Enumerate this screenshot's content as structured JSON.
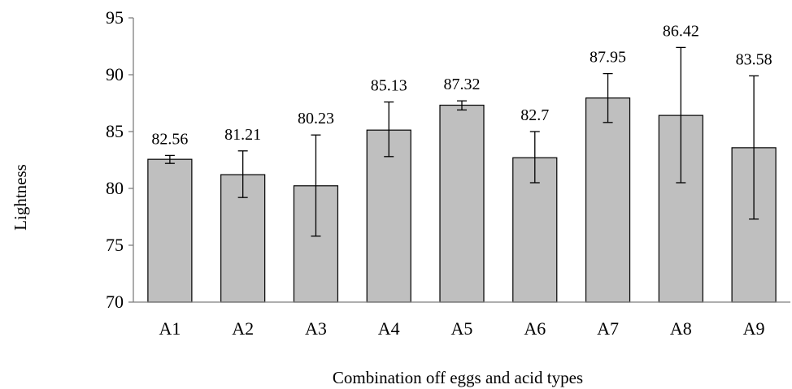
{
  "chart_data": {
    "type": "bar",
    "title": "",
    "xlabel": "Combination off eggs and acid types",
    "ylabel": "Lightness",
    "categories": [
      "A1",
      "A2",
      "A3",
      "A4",
      "A5",
      "A6",
      "A7",
      "A8",
      "A9"
    ],
    "values": [
      82.56,
      81.21,
      80.23,
      85.13,
      87.32,
      82.7,
      87.95,
      86.42,
      83.58
    ],
    "value_labels": [
      "82.56",
      "81.21",
      "80.23",
      "85.13",
      "87.32",
      "82.7",
      "87.95",
      "86.42",
      "83.58"
    ],
    "error_low": [
      82.2,
      79.2,
      75.8,
      82.8,
      86.9,
      80.5,
      85.8,
      80.5,
      77.3
    ],
    "error_high": [
      82.9,
      83.3,
      84.7,
      87.6,
      87.7,
      85.0,
      90.1,
      92.4,
      89.9
    ],
    "ylim": [
      70,
      95
    ],
    "yticks": [
      70,
      75,
      80,
      85,
      90,
      95
    ],
    "ytick_labels": [
      "70",
      "75",
      "80",
      "85",
      "90",
      "95"
    ],
    "grid": false,
    "legend": "none",
    "colors": {
      "bar_fill": "#bfbfbf",
      "bar_stroke": "#000000",
      "axis": "#7f7f7f",
      "error_bar": "#000000"
    }
  }
}
